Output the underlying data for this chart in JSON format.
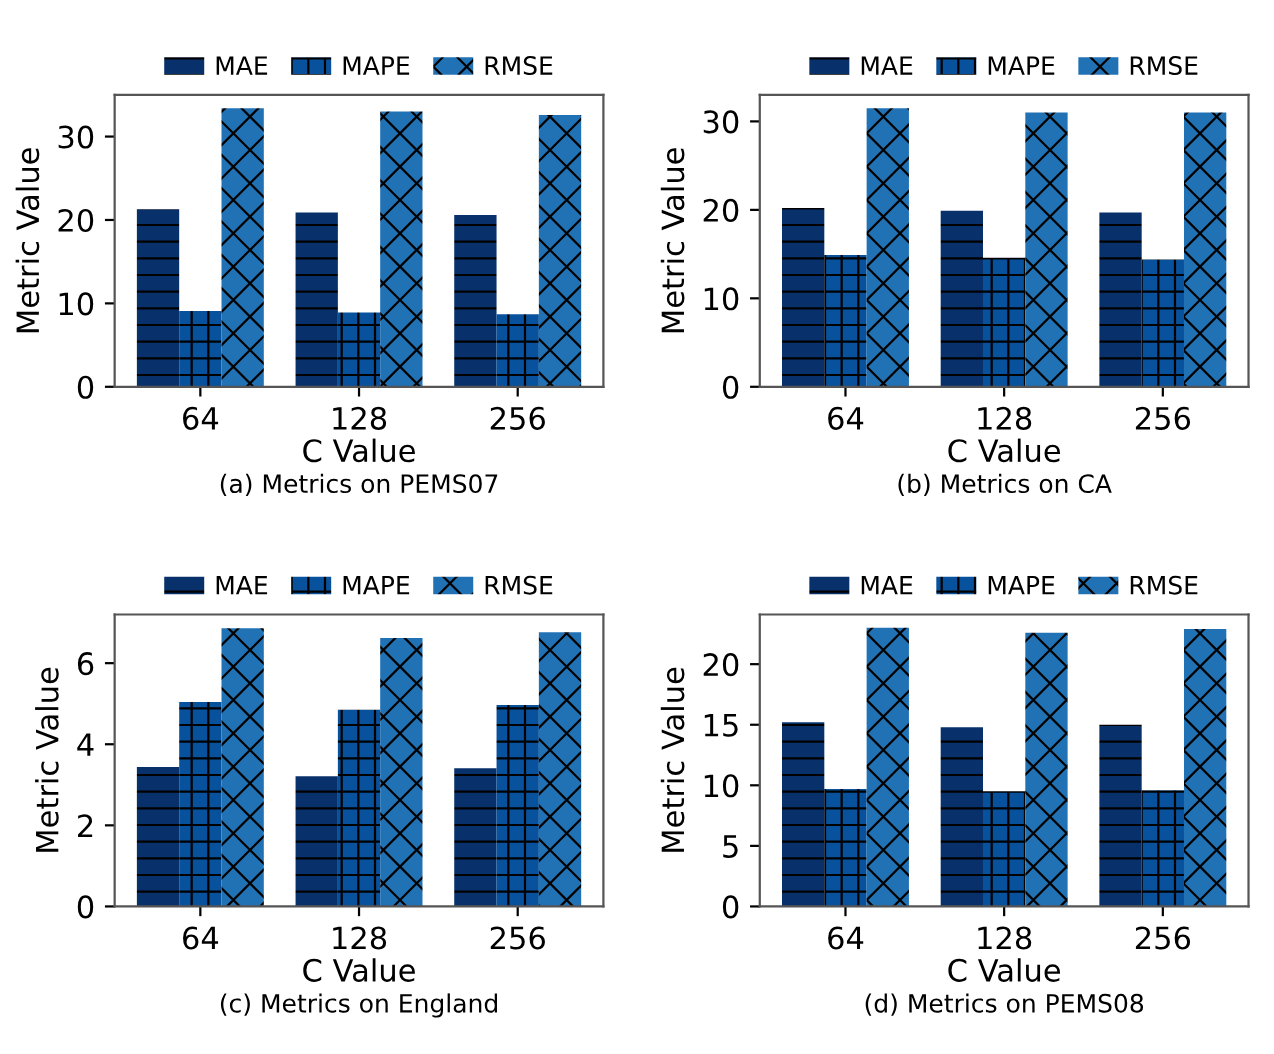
{
  "chart_data": [
    {
      "type": "bar",
      "title": "(a) Metrics on PEMS07",
      "xlabel": "C Value",
      "ylabel": "Metric Value",
      "categories": [
        "64",
        "128",
        "256"
      ],
      "ylim": [
        0,
        35
      ],
      "yticks": [
        0,
        10,
        20,
        30
      ],
      "legend": "top",
      "grid": false,
      "series": [
        {
          "name": "MAE",
          "color": "#08306b",
          "values": [
            21.3,
            20.9,
            20.6
          ]
        },
        {
          "name": "MAPE",
          "color": "#08519c",
          "values": [
            9.1,
            8.9,
            8.7
          ]
        },
        {
          "name": "RMSE",
          "color": "#2171b5",
          "values": [
            33.4,
            33.0,
            32.6
          ]
        }
      ]
    },
    {
      "type": "bar",
      "title": "(b) Metrics on CA",
      "xlabel": "C Value",
      "ylabel": "Metric Value",
      "categories": [
        "64",
        "128",
        "256"
      ],
      "ylim": [
        0,
        33
      ],
      "yticks": [
        0,
        10,
        20,
        30
      ],
      "legend": "top",
      "grid": false,
      "series": [
        {
          "name": "MAE",
          "color": "#08306b",
          "values": [
            20.2,
            19.9,
            19.7
          ]
        },
        {
          "name": "MAPE",
          "color": "#08519c",
          "values": [
            14.9,
            14.6,
            14.4
          ]
        },
        {
          "name": "RMSE",
          "color": "#2171b5",
          "values": [
            31.5,
            31.0,
            31.0
          ]
        }
      ]
    },
    {
      "type": "bar",
      "title": "(c) Metrics on England",
      "xlabel": "C Value",
      "ylabel": "Metric Value",
      "categories": [
        "64",
        "128",
        "256"
      ],
      "ylim": [
        0,
        7.2
      ],
      "yticks": [
        0,
        2,
        4,
        6
      ],
      "legend": "top",
      "grid": false,
      "series": [
        {
          "name": "MAE",
          "color": "#08306b",
          "values": [
            3.44,
            3.21,
            3.41
          ]
        },
        {
          "name": "MAPE",
          "color": "#08519c",
          "values": [
            5.04,
            4.85,
            4.97
          ]
        },
        {
          "name": "RMSE",
          "color": "#2171b5",
          "values": [
            6.86,
            6.62,
            6.76
          ]
        }
      ]
    },
    {
      "type": "bar",
      "title": "(d) Metrics on PEMS08",
      "xlabel": "C Value",
      "ylabel": "Metric Value",
      "categories": [
        "64",
        "128",
        "256"
      ],
      "ylim": [
        0,
        24.1
      ],
      "yticks": [
        0,
        5,
        10,
        15,
        20
      ],
      "legend": "top",
      "grid": false,
      "series": [
        {
          "name": "MAE",
          "color": "#08306b",
          "values": [
            15.2,
            14.8,
            15.0
          ]
        },
        {
          "name": "MAPE",
          "color": "#08519c",
          "values": [
            9.7,
            9.5,
            9.6
          ]
        },
        {
          "name": "RMSE",
          "color": "#2171b5",
          "values": [
            23.0,
            22.6,
            22.9
          ]
        }
      ]
    }
  ]
}
